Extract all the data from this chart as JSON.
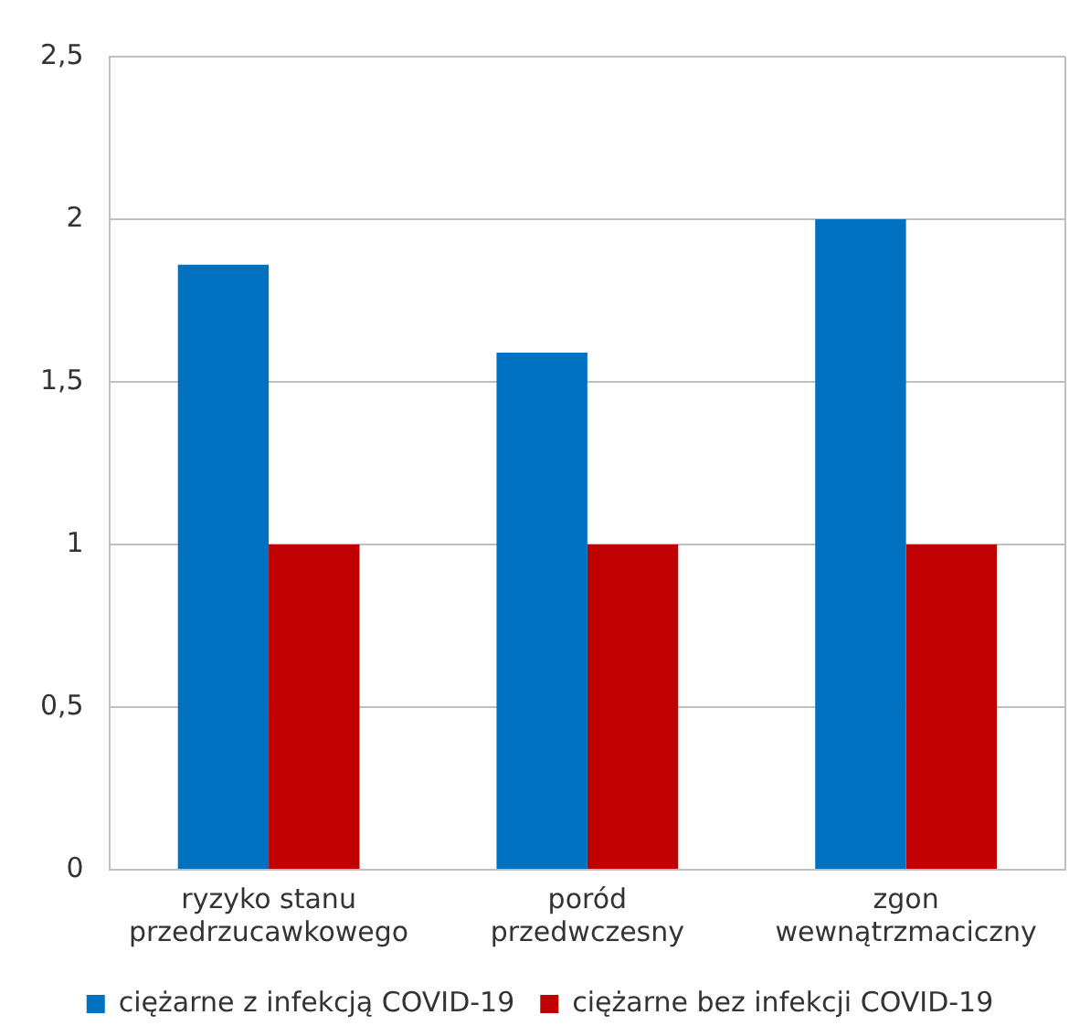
{
  "chart_data": {
    "type": "bar",
    "categories": [
      "ryzyko stanu przedrzucawkowego",
      "poród przedwczesny",
      "zgon wewnątrzmaciczny"
    ],
    "series": [
      {
        "name": "ciężarne z infekcją COVID-19",
        "color": "#0070c0",
        "values": [
          1.86,
          1.59,
          2.0
        ]
      },
      {
        "name": "ciężarne bez infekcji COVID-19",
        "color": "#c00000",
        "values": [
          1.0,
          1.0,
          1.0
        ]
      }
    ],
    "ylim": [
      0,
      2.5
    ],
    "yticks": [
      0,
      {
        "value": 0.5,
        "label": "0,5"
      },
      1,
      {
        "value": 1.5,
        "label": "1,5"
      },
      2,
      {
        "value": 2.5,
        "label": "2,5"
      }
    ],
    "grid": "y",
    "legend": "bottom"
  }
}
